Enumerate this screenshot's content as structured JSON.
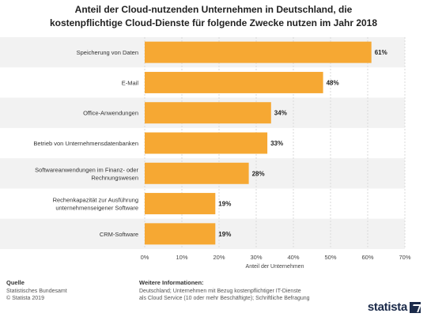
{
  "chart_data": {
    "type": "bar",
    "orientation": "horizontal",
    "title_lines": [
      "Anteil der Cloud-nutzenden Unternehmen in Deutschland, die",
      "kostenpflichtige Cloud-Dienste für folgende Zwecke nutzen im Jahr 2018"
    ],
    "categories": [
      [
        "Speicherung von Daten"
      ],
      [
        "E-Mail"
      ],
      [
        "Office-Anwendungen"
      ],
      [
        "Betrieb von Unternehmensdatenbanken"
      ],
      [
        "Softwareanwendungen im Finanz- oder",
        "Rechnungswesen"
      ],
      [
        "Rechenkapazität zur Ausführung",
        "unternehmenseigener Software"
      ],
      [
        "CRM-Software"
      ]
    ],
    "values": [
      61,
      48,
      34,
      33,
      28,
      19,
      19
    ],
    "value_labels": [
      "61%",
      "48%",
      "34%",
      "33%",
      "28%",
      "19%",
      "19%"
    ],
    "xlim": [
      0,
      70
    ],
    "x_ticks": [
      0,
      10,
      20,
      30,
      40,
      50,
      60,
      70
    ],
    "x_tick_labels": [
      "0%",
      "10%",
      "20%",
      "30%",
      "40%",
      "50%",
      "60%",
      "70%"
    ],
    "xlabel": "Anteil der Unternehmen",
    "bar_color": "#f6a833",
    "grid": true
  },
  "footer": {
    "source_heading": "Quelle",
    "source_lines": [
      "Statistisches Bundesamt",
      "© Statista 2019"
    ],
    "info_heading": "Weitere Informationen:",
    "info_lines": [
      "Deutschland; Unternehmen mit Bezug kostenpflichtiger IT-Dienste",
      "als Cloud Service (10 oder mehr Beschäftigte); Schriftliche Befragung"
    ],
    "logo_text": "statista"
  }
}
